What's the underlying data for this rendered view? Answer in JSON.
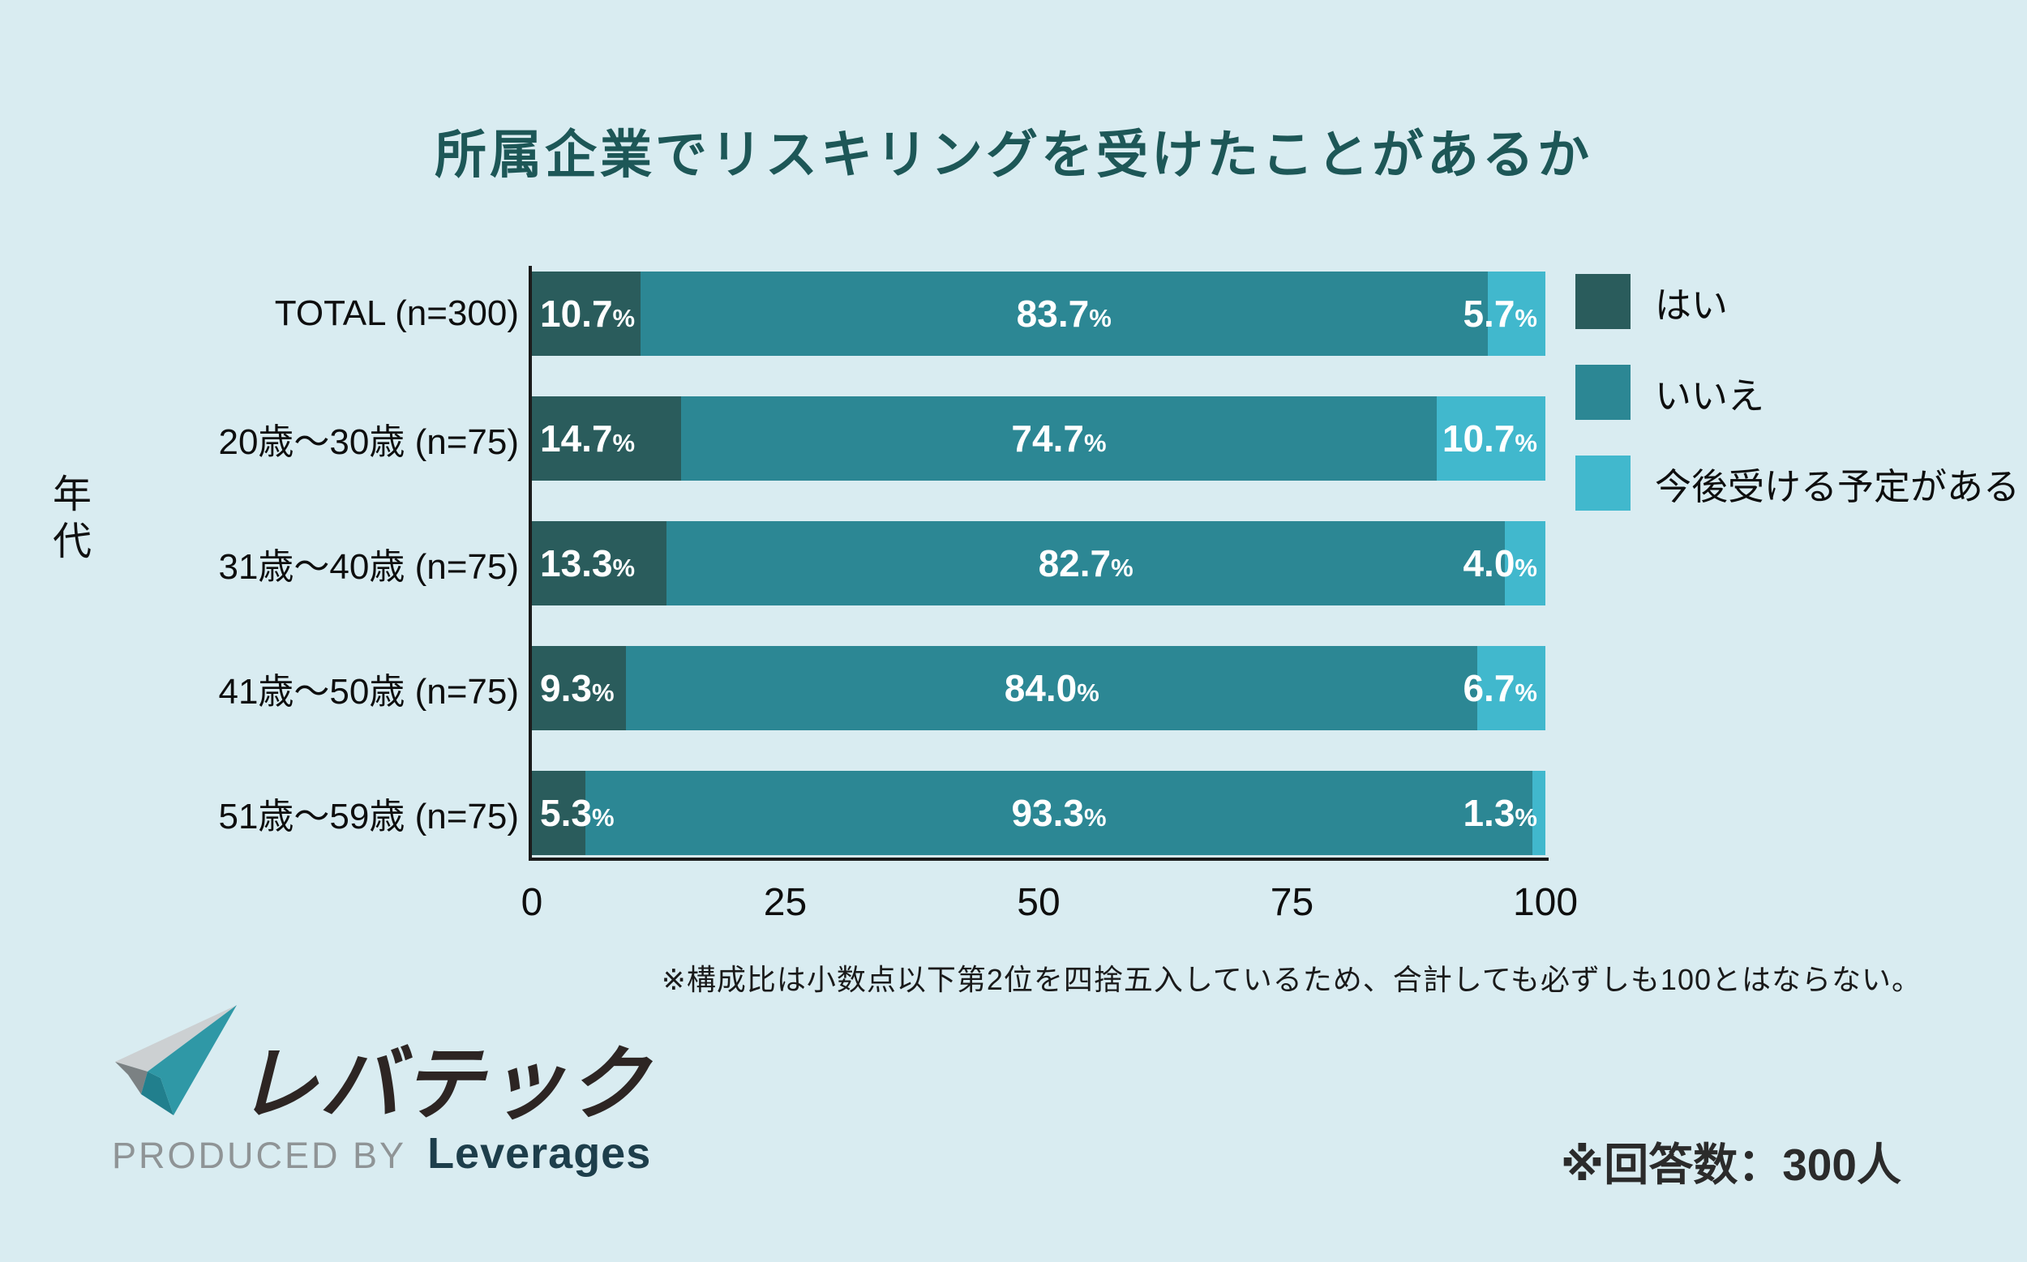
{
  "title": "所属企業でリスキリングを受けたことがあるか",
  "y_axis_label": "年代",
  "chart_data": {
    "type": "bar",
    "orientation": "horizontal",
    "stacked": true,
    "categories": [
      "TOTAL (n=300)",
      "20歳〜30歳 (n=75)",
      "31歳〜40歳 (n=75)",
      "41歳〜50歳 (n=75)",
      "51歳〜59歳 (n=75)"
    ],
    "series": [
      {
        "key": "yes",
        "name": "はい",
        "color": "#2a5c5c",
        "values": [
          10.7,
          14.7,
          13.3,
          9.3,
          5.3
        ]
      },
      {
        "key": "no",
        "name": "いいえ",
        "color": "#2c8794",
        "values": [
          83.7,
          74.7,
          82.7,
          84.0,
          93.3
        ]
      },
      {
        "key": "plan-to-receive",
        "name": "今後受ける予定がある",
        "color": "#41b8cd",
        "values": [
          5.7,
          10.7,
          4.0,
          6.7,
          1.3
        ]
      }
    ],
    "x_ticks": [
      "0",
      "25",
      "50",
      "75",
      "100"
    ],
    "xlim": [
      0,
      100
    ],
    "value_suffix": "%",
    "grid": false,
    "legend_position": "right-top"
  },
  "footnote": "※構成比は小数点以下第2位を四捨五入しているため、合計しても必ずしも100とはならない。",
  "answer_note": "※回答数：300人",
  "logo": {
    "brand": "レバテック",
    "produced_by": "PRODUCED BY",
    "company": "Leverages"
  },
  "colors": {
    "background": "#d9ecf1",
    "title_text": "#1d5757",
    "axis": "#1a1a1a",
    "bar_label_text": "#ffffff",
    "logo_icon_light_gray": "#ccd0d2",
    "logo_icon_dark_gray": "#7b8183",
    "logo_icon_teal": "#2f98a6",
    "logo_icon_dark_teal": "#217f8d"
  }
}
